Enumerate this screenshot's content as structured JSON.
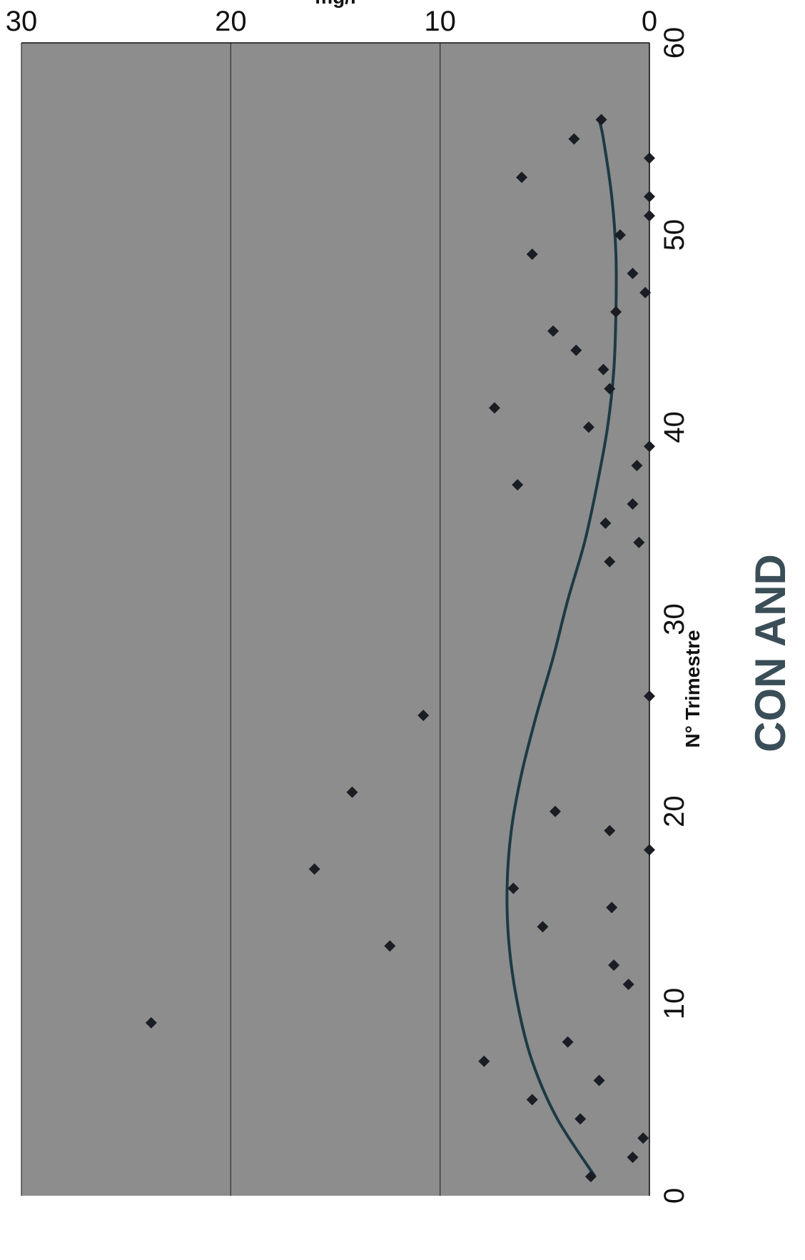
{
  "chart_data": {
    "type": "scatter",
    "title": "CON AND",
    "xlabel": "N° Trimestre",
    "ylabel": "mg/l",
    "xlim": [
      0,
      60
    ],
    "ylim": [
      0,
      30
    ],
    "xticks": [
      "0",
      "10",
      "20",
      "30",
      "40",
      "50",
      "60"
    ],
    "yticks": [
      "0",
      "10",
      "20",
      "30"
    ],
    "grid": "horizontal",
    "legend": "none",
    "series": [
      {
        "points": [
          [
            1,
            2.8
          ],
          [
            2,
            0.8
          ],
          [
            3,
            0.3
          ],
          [
            4,
            3.3
          ],
          [
            5,
            5.6
          ],
          [
            6,
            2.4
          ],
          [
            7,
            7.9
          ],
          [
            8,
            3.9
          ],
          [
            9,
            23.8
          ],
          [
            11,
            1.0
          ],
          [
            12,
            1.7
          ],
          [
            13,
            12.4
          ],
          [
            14,
            5.1
          ],
          [
            15,
            1.8
          ],
          [
            16,
            6.5
          ],
          [
            17,
            16.0
          ],
          [
            18,
            0
          ],
          [
            19,
            1.9
          ],
          [
            20,
            4.5
          ],
          [
            21,
            14.2
          ],
          [
            25,
            10.8
          ],
          [
            26,
            0
          ],
          [
            33,
            1.9
          ],
          [
            34,
            0.5
          ],
          [
            35,
            2.1
          ],
          [
            36,
            0.8
          ],
          [
            37,
            6.3
          ],
          [
            38,
            0.6
          ],
          [
            39,
            0
          ],
          [
            40,
            2.9
          ],
          [
            41,
            7.4
          ],
          [
            42,
            1.9
          ],
          [
            43,
            2.2
          ],
          [
            44,
            3.5
          ],
          [
            45,
            4.6
          ],
          [
            46,
            1.6
          ],
          [
            47,
            0.2
          ],
          [
            48,
            0.8
          ],
          [
            49,
            5.6
          ],
          [
            50,
            1.4
          ],
          [
            51,
            0
          ],
          [
            52,
            0
          ],
          [
            53,
            6.1
          ],
          [
            54,
            0
          ],
          [
            55,
            3.6
          ],
          [
            56,
            2.3
          ]
        ]
      }
    ],
    "trendline": {
      "type": "polynomial",
      "points": [
        [
          1,
          2.6
        ],
        [
          4,
          4.4
        ],
        [
          7,
          5.6
        ],
        [
          10,
          6.3
        ],
        [
          13,
          6.7
        ],
        [
          16,
          6.8
        ],
        [
          19,
          6.6
        ],
        [
          22,
          6.1
        ],
        [
          25,
          5.4
        ],
        [
          28,
          4.6
        ],
        [
          31,
          3.9
        ],
        [
          34,
          3.1
        ],
        [
          37,
          2.5
        ],
        [
          40,
          2.0
        ],
        [
          43,
          1.7
        ],
        [
          46,
          1.6
        ],
        [
          49,
          1.6
        ],
        [
          52,
          1.8
        ],
        [
          55,
          2.2
        ],
        [
          56,
          2.4
        ]
      ]
    },
    "colors": {
      "plot_background": "#8d8d8d",
      "marker": "#1a1d24",
      "trendline": "#1d3a44",
      "title": "#3a4e58"
    }
  }
}
